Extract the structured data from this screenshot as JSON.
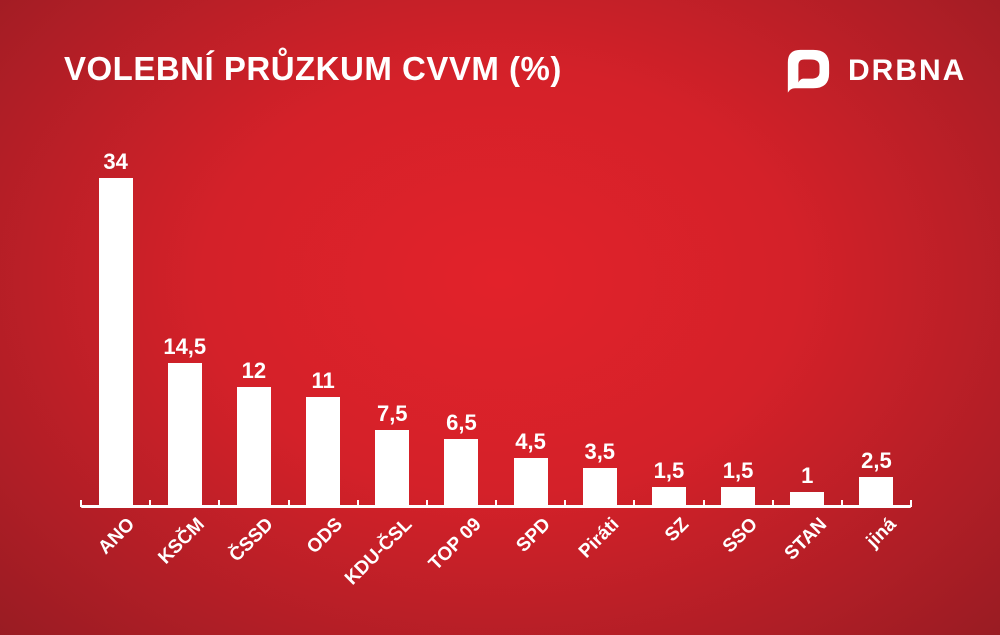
{
  "title": "VOLEBNÍ PRŮZKUM CVVM (%)",
  "brand": {
    "name": "DRBNA",
    "icon": "drbna-speech-bubble-d-icon"
  },
  "colors": {
    "background_center": "#e2222a",
    "background_edge": "#8e1a21",
    "bar": "#ffffff",
    "text": "#ffffff",
    "axis": "#ffffff"
  },
  "chart_data": {
    "type": "bar",
    "title": "VOLEBNÍ PRŮZKUM CVVM (%)",
    "categories": [
      "ANO",
      "KSČM",
      "ČSSD",
      "ODS",
      "KDU-ČSL",
      "TOP 09",
      "SPD",
      "Piráti",
      "SZ",
      "SSO",
      "STAN",
      "jiná"
    ],
    "values": [
      34,
      14.5,
      12,
      11,
      7.5,
      6.5,
      4.5,
      3.5,
      1.5,
      1.5,
      1,
      2.5
    ],
    "value_labels": [
      "34",
      "14,5",
      "12",
      "11",
      "7,5",
      "6,5",
      "4,5",
      "3,5",
      "1,5",
      "1,5",
      "1",
      "2,5"
    ],
    "xlabel": "",
    "ylabel": "",
    "ylim": [
      0,
      34
    ],
    "grid": false,
    "legend": false,
    "bar_color": "#ffffff",
    "value_label_position": "above",
    "x_label_rotation_deg": 45,
    "decimal_separator": ","
  }
}
